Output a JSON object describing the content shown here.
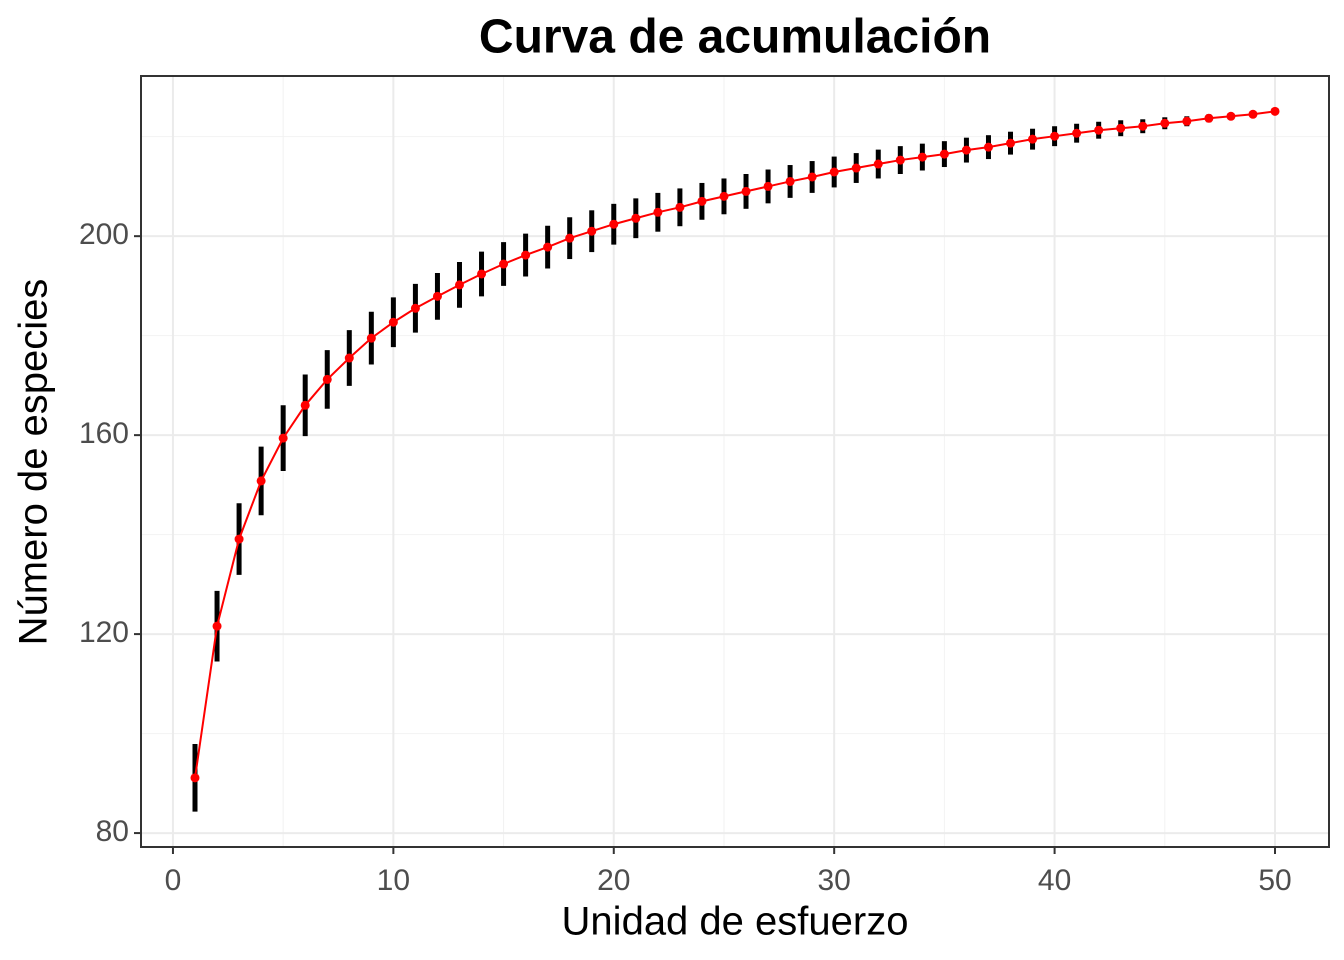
{
  "chart_data": {
    "type": "errorbar-line",
    "title": "Curva de acumulación",
    "xlabel": "Unidad de esfuerzo",
    "ylabel": "Número de especies",
    "x": [
      1,
      2,
      3,
      4,
      5,
      6,
      7,
      8,
      9,
      10,
      11,
      12,
      13,
      14,
      15,
      16,
      17,
      18,
      19,
      20,
      21,
      22,
      23,
      24,
      25,
      26,
      27,
      28,
      29,
      30,
      31,
      32,
      33,
      34,
      35,
      36,
      37,
      38,
      39,
      40,
      41,
      42,
      43,
      44,
      45,
      46,
      47,
      48,
      49,
      50
    ],
    "values": [
      91.1,
      121.6,
      139.1,
      150.8,
      159.4,
      166.0,
      171.2,
      175.5,
      179.5,
      182.7,
      185.5,
      187.9,
      190.2,
      192.4,
      194.4,
      196.2,
      197.8,
      199.6,
      201.0,
      202.4,
      203.6,
      204.8,
      205.8,
      207.0,
      208.0,
      209.0,
      210.0,
      211.0,
      211.9,
      212.9,
      213.7,
      214.5,
      215.3,
      215.9,
      216.5,
      217.3,
      217.9,
      218.7,
      219.5,
      220.1,
      220.7,
      221.3,
      221.7,
      222.1,
      222.7,
      223.1,
      223.7,
      224.1,
      224.5,
      225.1
    ],
    "errors": [
      6.8,
      7.1,
      7.2,
      6.9,
      6.6,
      6.2,
      5.9,
      5.6,
      5.3,
      5.0,
      4.9,
      4.7,
      4.6,
      4.5,
      4.4,
      4.3,
      4.3,
      4.2,
      4.2,
      4.1,
      4.0,
      3.9,
      3.8,
      3.7,
      3.6,
      3.5,
      3.4,
      3.3,
      3.2,
      3.1,
      3.0,
      2.9,
      2.8,
      2.7,
      2.6,
      2.5,
      2.4,
      2.3,
      2.1,
      2.0,
      1.9,
      1.7,
      1.6,
      1.4,
      1.2,
      1.0,
      0.8,
      0.6,
      0.3,
      0
    ],
    "color": "#ff0000",
    "error_color": "#000000",
    "xlim": [
      -1.45,
      52.45
    ],
    "ylim": [
      77.2,
      232.2
    ],
    "xticks": [
      0,
      10,
      20,
      30,
      40,
      50
    ],
    "yticks": [
      80,
      120,
      160,
      200
    ],
    "xminor": [
      5,
      15,
      25,
      35,
      45
    ],
    "yminor": [
      100,
      140,
      180,
      220
    ],
    "grid": true
  }
}
